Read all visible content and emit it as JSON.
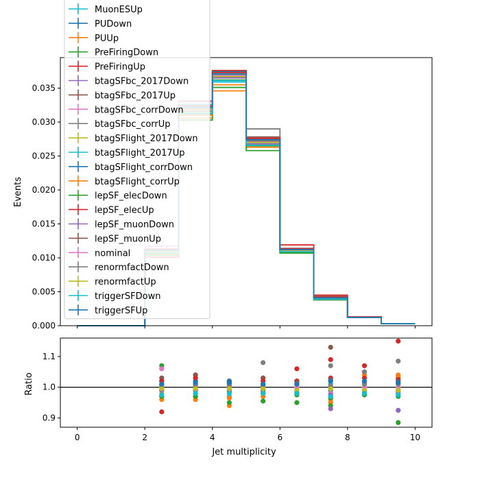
{
  "chart_data": [
    {
      "type": "step",
      "ylabel": "Events",
      "xlim": [
        -0.5,
        10.5
      ],
      "ylim": [
        0,
        0.0395
      ],
      "yticks": [
        "0.000",
        "0.005",
        "0.010",
        "0.015",
        "0.020",
        "0.025",
        "0.030",
        "0.035"
      ],
      "ytick_values": [
        0,
        0.005,
        0.01,
        0.015,
        0.02,
        0.025,
        0.03,
        0.035
      ],
      "bin_edges": [
        0,
        1,
        2,
        3,
        4,
        5,
        6,
        7,
        8,
        9,
        10
      ],
      "legend_position": "upper left",
      "series": [
        {
          "name": "MuonESUp",
          "color": "#17becf",
          "values": [
            0,
            0,
            0.0112,
            0.0326,
            0.0371,
            0.0272,
            0.0111,
            0.004,
            0.0012,
            0.0003
          ]
        },
        {
          "name": "PUDown",
          "color": "#1f77b4",
          "values": [
            0,
            0,
            0.0109,
            0.0318,
            0.0366,
            0.027,
            0.011,
            0.004,
            0.0012,
            0.0003
          ]
        },
        {
          "name": "PUUp",
          "color": "#ff7f0e",
          "values": [
            0,
            0,
            0.0105,
            0.0306,
            0.0346,
            0.0263,
            0.0109,
            0.0038,
            0.0012,
            0.0003
          ]
        },
        {
          "name": "PreFiringDown",
          "color": "#2ca02c",
          "values": [
            0,
            0,
            0.0104,
            0.0303,
            0.0351,
            0.0258,
            0.0107,
            0.0038,
            0.0012,
            0.0003
          ]
        },
        {
          "name": "PreFiringUp",
          "color": "#d62728",
          "values": [
            0,
            0,
            0.0101,
            0.032,
            0.0376,
            0.0278,
            0.0119,
            0.0045,
            0.0013,
            0.0003
          ]
        },
        {
          "name": "btagSFbc_2017Down",
          "color": "#9467bd",
          "values": [
            0,
            0,
            0.0111,
            0.0322,
            0.0368,
            0.0271,
            0.011,
            0.004,
            0.0012,
            0.0003
          ]
        },
        {
          "name": "btagSFbc_2017Up",
          "color": "#8c564b",
          "values": [
            0,
            0,
            0.0113,
            0.0331,
            0.0375,
            0.0278,
            0.0114,
            0.0043,
            0.0013,
            0.0003
          ]
        },
        {
          "name": "btagSFbc_corrDown",
          "color": "#e377c2",
          "values": [
            0,
            0,
            0.0117,
            0.033,
            0.0368,
            0.0268,
            0.0112,
            0.0039,
            0.0012,
            0.0003
          ]
        },
        {
          "name": "btagSFbc_corrUp",
          "color": "#7f7f7f",
          "values": [
            0,
            0,
            0.011,
            0.0316,
            0.0373,
            0.029,
            0.0113,
            0.0042,
            0.0013,
            0.0003
          ]
        },
        {
          "name": "btagSFlight_2017Down",
          "color": "#bcbd22",
          "values": [
            0,
            0,
            0.0108,
            0.0315,
            0.037,
            0.0273,
            0.0111,
            0.004,
            0.0012,
            0.0003
          ]
        },
        {
          "name": "btagSFlight_2017Up",
          "color": "#17becf",
          "values": [
            0,
            0,
            0.011,
            0.0313,
            0.0359,
            0.0268,
            0.011,
            0.0039,
            0.0012,
            0.0003
          ]
        },
        {
          "name": "btagSFlight_corrDown",
          "color": "#1f77b4",
          "values": [
            0,
            0,
            0.0112,
            0.0322,
            0.0374,
            0.0275,
            0.0112,
            0.0041,
            0.0012,
            0.0003
          ]
        },
        {
          "name": "btagSFlight_corrUp",
          "color": "#ff7f0e",
          "values": [
            0,
            0,
            0.0106,
            0.031,
            0.0355,
            0.0267,
            0.011,
            0.0039,
            0.0012,
            0.0003
          ]
        },
        {
          "name": "lepSF_elecDown",
          "color": "#2ca02c",
          "values": [
            0,
            0,
            0.0107,
            0.0312,
            0.0362,
            0.0265,
            0.0108,
            0.0039,
            0.0012,
            0.0003
          ]
        },
        {
          "name": "lepSF_elecUp",
          "color": "#d62728",
          "values": [
            0,
            0,
            0.0112,
            0.0324,
            0.0373,
            0.0276,
            0.0113,
            0.0042,
            0.0013,
            0.0003
          ]
        },
        {
          "name": "lepSF_muonDown",
          "color": "#9467bd",
          "values": [
            0,
            0,
            0.0109,
            0.0316,
            0.0365,
            0.0268,
            0.0109,
            0.0039,
            0.0012,
            0.0003
          ]
        },
        {
          "name": "lepSF_muonUp",
          "color": "#8c564b",
          "values": [
            0,
            0,
            0.0111,
            0.0322,
            0.0371,
            0.0273,
            0.0112,
            0.0041,
            0.0012,
            0.0003
          ]
        },
        {
          "name": "nominal",
          "color": "#e377c2",
          "values": [
            0,
            0,
            0.011,
            0.0319,
            0.0368,
            0.0271,
            0.0111,
            0.004,
            0.0012,
            0.0003
          ]
        },
        {
          "name": "renormfactDown",
          "color": "#7f7f7f",
          "values": [
            0,
            0,
            0.0111,
            0.032,
            0.037,
            0.0272,
            0.0112,
            0.004,
            0.0012,
            0.0003
          ]
        },
        {
          "name": "renormfactUp",
          "color": "#bcbd22",
          "values": [
            0,
            0,
            0.0109,
            0.0318,
            0.0367,
            0.027,
            0.011,
            0.004,
            0.0012,
            0.0003
          ]
        },
        {
          "name": "triggerSFDown",
          "color": "#17becf",
          "values": [
            0,
            0,
            0.0107,
            0.0313,
            0.0361,
            0.0266,
            0.0109,
            0.0039,
            0.0012,
            0.0003
          ]
        },
        {
          "name": "triggerSFUp",
          "color": "#1f77b4",
          "values": [
            0,
            0,
            0.0111,
            0.0322,
            0.0371,
            0.0274,
            0.0112,
            0.0041,
            0.0012,
            0.0003
          ]
        }
      ]
    },
    {
      "type": "scatter",
      "xlabel": "Jet multiplicity",
      "ylabel": "Ratio",
      "xlim": [
        -0.5,
        10.5
      ],
      "ylim": [
        0.87,
        1.16
      ],
      "xticks": [
        "0",
        "2",
        "4",
        "6",
        "8",
        "10"
      ],
      "xtick_values": [
        0,
        2,
        4,
        6,
        8,
        10
      ],
      "yticks": [
        "0.9",
        "1.0",
        "1.1"
      ],
      "ytick_values": [
        0.9,
        1.0,
        1.1
      ],
      "reference_line": 1.0,
      "x": [
        2.5,
        3.5,
        4.5,
        5.5,
        6.5,
        7.5,
        8.5,
        9.5
      ],
      "series": [
        {
          "name": "MuonESUp",
          "color": "#17becf",
          "values": [
            1.02,
            1.02,
            1.01,
            1.0,
            1.01,
            1.01,
            1.0,
            1.01
          ]
        },
        {
          "name": "PUDown",
          "color": "#1f77b4",
          "values": [
            0.99,
            1.0,
            0.99,
            0.99,
            0.99,
            0.99,
            0.99,
            0.99
          ]
        },
        {
          "name": "PUUp",
          "color": "#ff7f0e",
          "values": [
            0.96,
            0.96,
            0.94,
            0.97,
            0.98,
            0.95,
            1.04,
            1.04
          ]
        },
        {
          "name": "PreFiringDown",
          "color": "#2ca02c",
          "values": [
            1.07,
            1.04,
            0.95,
            0.955,
            0.95,
            0.94,
            0.985,
            0.885
          ]
        },
        {
          "name": "PreFiringUp",
          "color": "#d62728",
          "values": [
            0.92,
            1.0,
            1.02,
            1.03,
            1.06,
            1.09,
            1.07,
            1.15
          ]
        },
        {
          "name": "btagSFbc_2017Down",
          "color": "#9467bd",
          "values": [
            1.01,
            1.01,
            1.0,
            1.0,
            0.99,
            0.93,
            0.99,
            0.925
          ]
        },
        {
          "name": "btagSFbc_2017Up",
          "color": "#8c564b",
          "values": [
            1.03,
            1.04,
            1.02,
            1.03,
            1.02,
            1.13,
            1.05,
            1.03
          ]
        },
        {
          "name": "btagSFbc_corrDown",
          "color": "#e377c2",
          "values": [
            1.06,
            1.03,
            1.0,
            0.99,
            1.01,
            0.98,
            1.0,
            1.0
          ]
        },
        {
          "name": "btagSFbc_corrUp",
          "color": "#7f7f7f",
          "values": [
            1.0,
            0.99,
            1.01,
            1.08,
            1.02,
            1.07,
            1.05,
            1.085
          ]
        },
        {
          "name": "btagSFlight_2017Down",
          "color": "#bcbd22",
          "values": [
            0.98,
            0.99,
            1.0,
            1.0,
            1.0,
            1.0,
            1.0,
            1.0
          ]
        },
        {
          "name": "btagSFlight_2017Up",
          "color": "#17becf",
          "values": [
            1.0,
            0.98,
            0.97,
            0.99,
            0.99,
            0.975,
            0.985,
            0.98
          ]
        },
        {
          "name": "btagSFlight_corrDown",
          "color": "#1f77b4",
          "values": [
            1.02,
            1.02,
            1.02,
            1.01,
            1.02,
            1.02,
            1.015,
            1.015
          ]
        },
        {
          "name": "btagSFlight_corrUp",
          "color": "#ff7f0e",
          "values": [
            0.97,
            0.97,
            0.965,
            0.985,
            0.99,
            0.96,
            0.985,
            1.035
          ]
        },
        {
          "name": "lepSF_elecDown",
          "color": "#2ca02c",
          "values": [
            0.97,
            0.97,
            0.985,
            0.98,
            0.975,
            0.965,
            0.975,
            0.97
          ]
        },
        {
          "name": "lepSF_elecUp",
          "color": "#d62728",
          "values": [
            1.02,
            1.03,
            1.015,
            1.02,
            1.02,
            1.03,
            1.03,
            1.025
          ]
        },
        {
          "name": "lepSF_muonDown",
          "color": "#9467bd",
          "values": [
            0.99,
            0.99,
            0.99,
            0.99,
            0.985,
            0.975,
            0.985,
            0.985
          ]
        },
        {
          "name": "lepSF_muonUp",
          "color": "#8c564b",
          "values": [
            1.01,
            1.01,
            1.01,
            1.01,
            1.015,
            1.025,
            1.015,
            1.02
          ]
        },
        {
          "name": "nominal",
          "color": "#e377c2",
          "values": [
            1.0,
            1.0,
            1.0,
            1.0,
            1.0,
            1.0,
            1.0,
            1.0
          ]
        },
        {
          "name": "renormfactDown",
          "color": "#7f7f7f",
          "values": [
            1.005,
            1.005,
            1.005,
            1.005,
            1.01,
            1.005,
            1.01,
            1.01
          ]
        },
        {
          "name": "renormfactUp",
          "color": "#bcbd22",
          "values": [
            0.995,
            0.995,
            0.995,
            0.995,
            0.99,
            0.995,
            0.99,
            0.99
          ]
        },
        {
          "name": "triggerSFDown",
          "color": "#17becf",
          "values": [
            0.975,
            0.98,
            0.98,
            0.98,
            0.98,
            0.97,
            0.98,
            0.975
          ]
        },
        {
          "name": "triggerSFUp",
          "color": "#1f77b4",
          "values": [
            1.01,
            1.015,
            1.015,
            1.01,
            1.01,
            1.02,
            1.02,
            1.015
          ]
        }
      ]
    }
  ]
}
